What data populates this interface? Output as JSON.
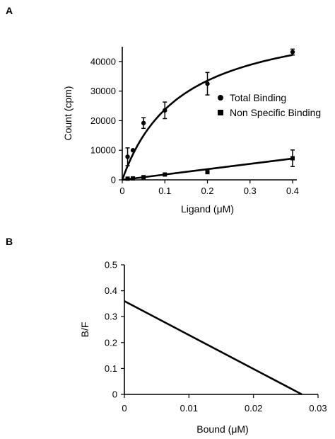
{
  "chart_data": [
    {
      "panel": "A",
      "type": "scatter",
      "xlabel": "Ligand (μM)",
      "ylabel": "Count (cpm)",
      "xlim": [
        0,
        0.4
      ],
      "ylim": [
        0,
        45000
      ],
      "xticks": [
        "0",
        "0.1",
        "0.2",
        "0.3",
        "0.4"
      ],
      "xtick_values": [
        0,
        0.1,
        0.2,
        0.3,
        0.4
      ],
      "yticks": [
        "0",
        "10000",
        "20000",
        "30000",
        "40000"
      ],
      "ytick_values": [
        0,
        10000,
        20000,
        30000,
        40000
      ],
      "legend_placement": "right",
      "series": [
        {
          "name": "Total Binding",
          "marker": "circle",
          "x": [
            0.0125,
            0.025,
            0.05,
            0.1,
            0.2,
            0.4
          ],
          "y": [
            7800,
            10000,
            19200,
            23500,
            32500,
            43200
          ],
          "err": [
            3000,
            0,
            1800,
            2800,
            3800,
            1000
          ],
          "fit": "hyperbolic",
          "fit_params": {
            "bmax": 57000,
            "kd": 0.14
          }
        },
        {
          "name": "Non Specific Binding",
          "marker": "square",
          "x": [
            0.0125,
            0.025,
            0.05,
            0.1,
            0.2,
            0.4
          ],
          "y": [
            400,
            500,
            900,
            1800,
            2600,
            7300
          ],
          "err": [
            0,
            0,
            0,
            0,
            0,
            2800
          ],
          "fit": "linear",
          "fit_params": {
            "slope": 18000,
            "intercept": 0
          }
        }
      ]
    },
    {
      "panel": "B",
      "type": "line",
      "xlabel": "Bound (μM)",
      "ylabel": "B/F",
      "xlim": [
        0,
        0.03
      ],
      "ylim": [
        0,
        0.5
      ],
      "xticks": [
        "0",
        "0.01",
        "0.02",
        "0.03"
      ],
      "xtick_values": [
        0,
        0.01,
        0.02,
        0.03
      ],
      "yticks": [
        "0",
        "0.1",
        "0.2",
        "0.3",
        "0.4",
        "0.5"
      ],
      "ytick_values": [
        0,
        0.1,
        0.2,
        0.3,
        0.4,
        0.5
      ],
      "series": [
        {
          "x": [
            0,
            0.0275
          ],
          "y": [
            0.36,
            0
          ]
        }
      ]
    }
  ]
}
